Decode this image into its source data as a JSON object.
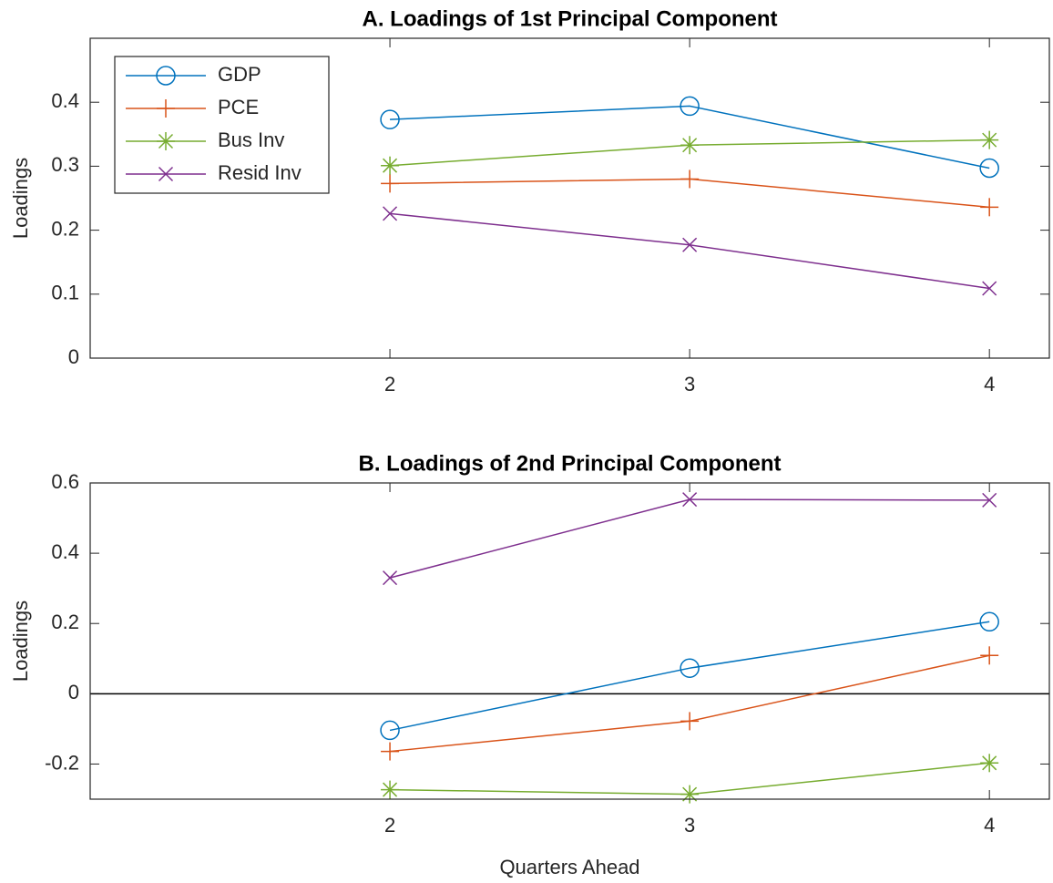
{
  "chart_data": [
    {
      "type": "line",
      "title": "A.  Loadings of 1st Principal Component",
      "ylabel": "Loadings",
      "x": [
        2,
        3,
        4
      ],
      "xlim": [
        1,
        4.2
      ],
      "xticks": [
        2,
        3,
        4
      ],
      "ylim": [
        0,
        0.5
      ],
      "yticks": [
        0,
        0.1,
        0.2,
        0.3,
        0.4
      ],
      "legend": "upper left",
      "series": [
        {
          "name": "GDP",
          "color": "#0072BD",
          "marker": "circle",
          "values": [
            0.373,
            0.394,
            0.297
          ]
        },
        {
          "name": "PCE",
          "color": "#D95319",
          "marker": "plus",
          "values": [
            0.273,
            0.28,
            0.236
          ]
        },
        {
          "name": "Bus Inv",
          "color": "#77AC30",
          "marker": "asterisk",
          "values": [
            0.301,
            0.333,
            0.341
          ]
        },
        {
          "name": "Resid Inv",
          "color": "#7E2F8E",
          "marker": "x",
          "values": [
            0.226,
            0.177,
            0.109
          ]
        }
      ]
    },
    {
      "type": "line",
      "title": "B.  Loadings of 2nd Principal Component",
      "ylabel": "Loadings",
      "xlabel": "Quarters Ahead",
      "x": [
        2,
        3,
        4
      ],
      "xlim": [
        1,
        4.2
      ],
      "xticks": [
        2,
        3,
        4
      ],
      "ylim": [
        -0.3,
        0.6
      ],
      "yticks": [
        -0.2,
        0,
        0.2,
        0.4,
        0.6
      ],
      "zero_line": true,
      "series": [
        {
          "name": "GDP",
          "color": "#0072BD",
          "marker": "circle",
          "values": [
            -0.104,
            0.073,
            0.205
          ]
        },
        {
          "name": "PCE",
          "color": "#D95319",
          "marker": "plus",
          "values": [
            -0.164,
            -0.078,
            0.109
          ]
        },
        {
          "name": "Bus Inv",
          "color": "#77AC30",
          "marker": "asterisk",
          "values": [
            -0.273,
            -0.286,
            -0.197
          ]
        },
        {
          "name": "Resid Inv",
          "color": "#7E2F8E",
          "marker": "x",
          "values": [
            0.33,
            0.553,
            0.551
          ]
        }
      ]
    }
  ]
}
